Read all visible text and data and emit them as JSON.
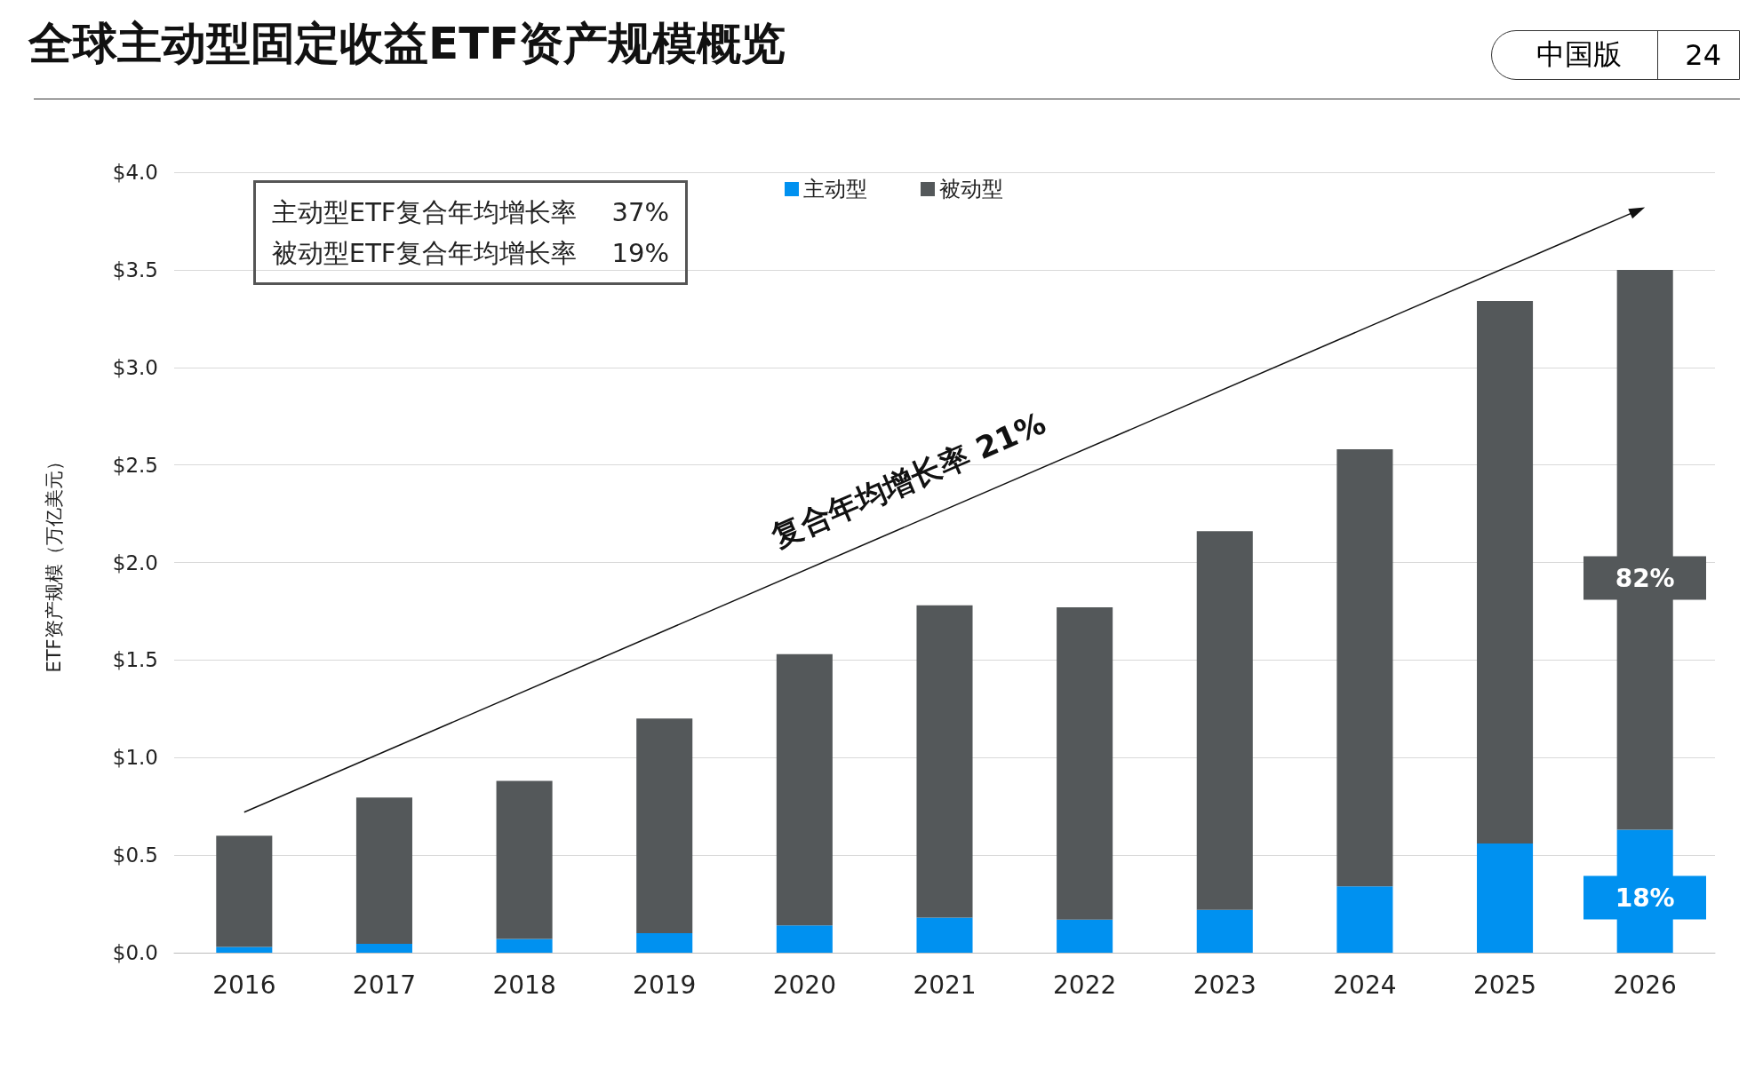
{
  "chart_data": {
    "type": "bar",
    "title": "全球主动型固定收益ETF资产规模概览",
    "ylabel": "ETF资产规模（万亿美元）",
    "categories": [
      "2016",
      "2017",
      "2018",
      "2019",
      "2020",
      "2021",
      "2022",
      "2023",
      "2024",
      "2025",
      "2026"
    ],
    "stacked": true,
    "legend": "top",
    "grid": "y",
    "ylim": [
      0,
      4
    ],
    "yticks": [
      {
        "value": 0,
        "label": "$0.0"
      },
      {
        "value": 0.5,
        "label": "$0.5"
      },
      {
        "value": 1,
        "label": "$1.0"
      },
      {
        "value": 1.5,
        "label": "$1.5"
      },
      {
        "value": 2,
        "label": "$2.0"
      },
      {
        "value": 2.5,
        "label": "$2.5"
      },
      {
        "value": 3,
        "label": "$3.0"
      },
      {
        "value": 3.5,
        "label": "$3.5"
      },
      {
        "value": 4,
        "label": "$4.0"
      }
    ],
    "series": [
      {
        "name": "主动型",
        "color": "#0091f0",
        "values": [
          0.03,
          0.045,
          0.07,
          0.1,
          0.14,
          0.18,
          0.17,
          0.22,
          0.34,
          0.56,
          0.63
        ]
      },
      {
        "name": "被动型",
        "color": "#54585a",
        "values": [
          0.57,
          0.75,
          0.81,
          1.1,
          1.39,
          1.6,
          1.6,
          1.94,
          2.24,
          2.78,
          2.87
        ]
      }
    ],
    "annotations": [
      "主动型ETF复合年均增长率 37%",
      "被动型ETF复合年均增长率 19%",
      "复合年均增长率 21%",
      "中国版",
      "24",
      "18%",
      "82%"
    ]
  }
}
